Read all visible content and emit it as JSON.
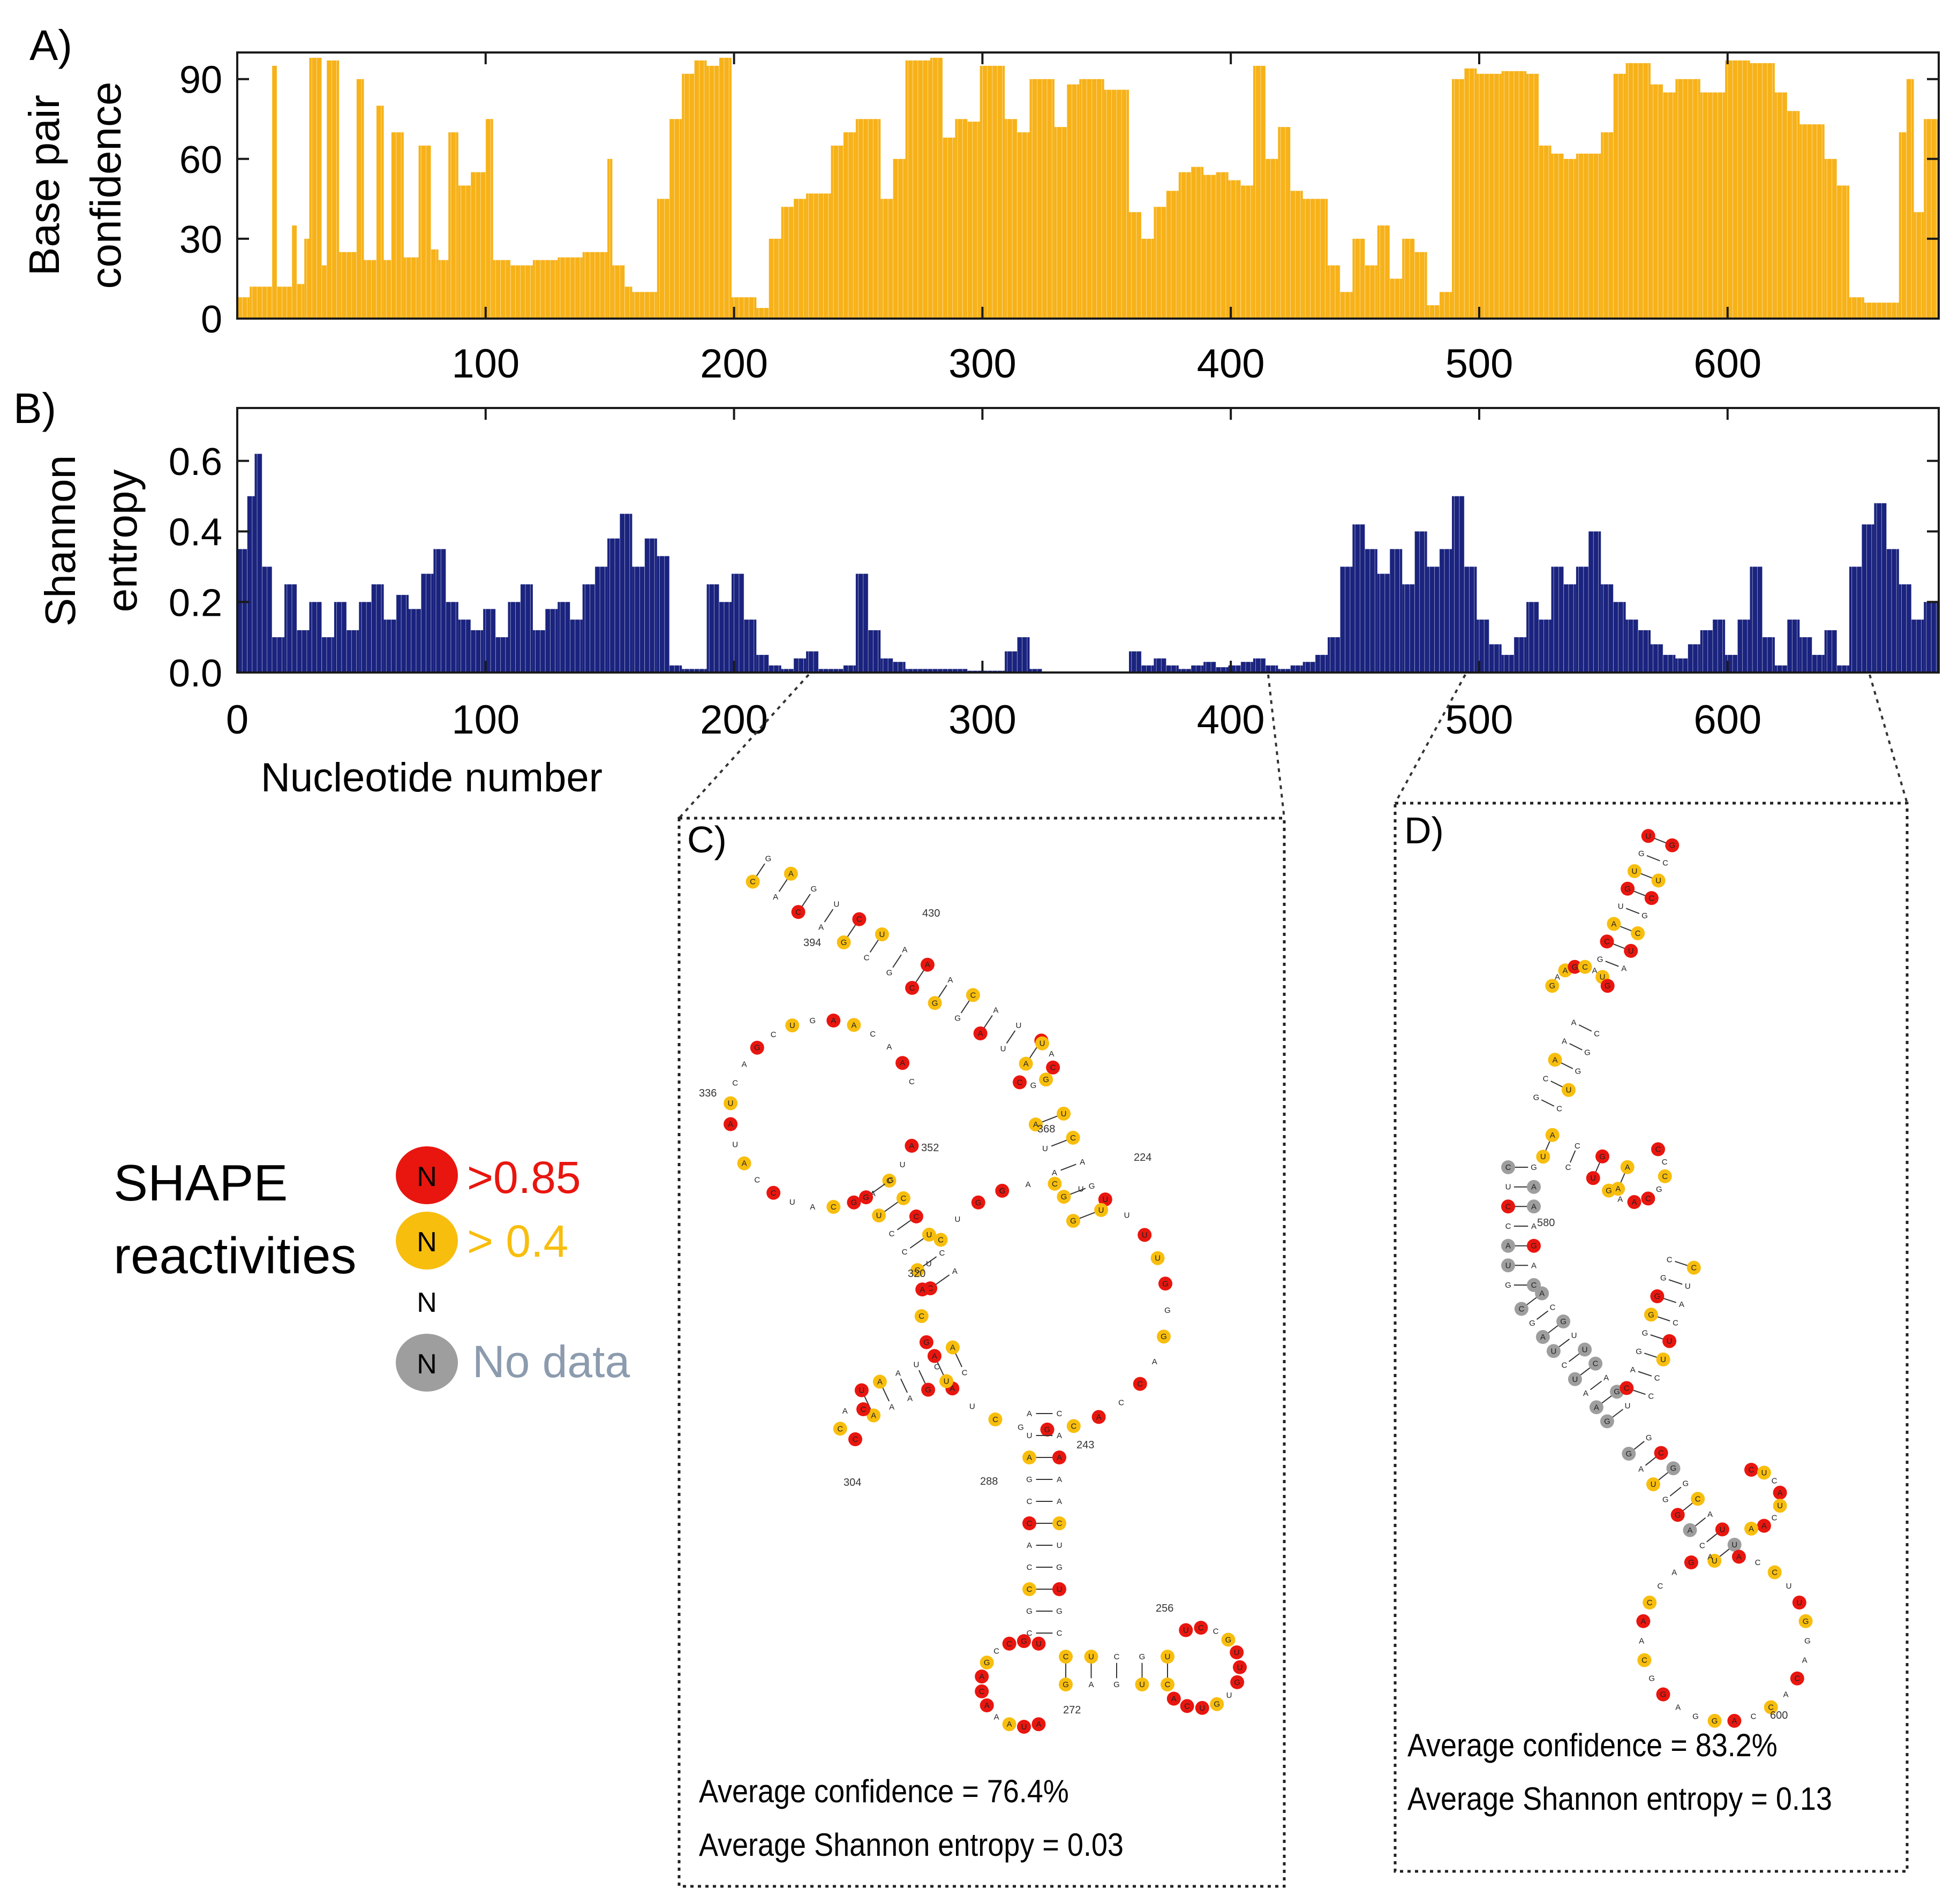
{
  "panels": {
    "a": {
      "label": "A)"
    },
    "b": {
      "label": "B)"
    },
    "c": {
      "label": "C)"
    },
    "d": {
      "label": "D)"
    }
  },
  "colors": {
    "confidence_bar": "#F7B219",
    "entropy_bar": "#1A237E",
    "shape_high": "#E8160F",
    "shape_mid": "#F8BE0E",
    "shape_nodata": "#9E9E9E",
    "nodata_text": "#8C9BAE"
  },
  "chart_data": [
    {
      "type": "bar",
      "panel": "A",
      "ylabel_lines": [
        "Base pair",
        "confidence"
      ],
      "xlim": [
        0,
        685
      ],
      "ylim": [
        0,
        100
      ],
      "yticks": [
        0,
        30,
        60,
        90
      ],
      "xticks": [
        100,
        200,
        300,
        400,
        500,
        600
      ],
      "segments": [
        [
          1,
          5,
          8
        ],
        [
          6,
          14,
          12
        ],
        [
          15,
          16,
          95
        ],
        [
          17,
          22,
          12
        ],
        [
          23,
          24,
          35
        ],
        [
          25,
          27,
          13
        ],
        [
          28,
          29,
          30
        ],
        [
          30,
          34,
          98
        ],
        [
          35,
          36,
          20
        ],
        [
          37,
          41,
          97
        ],
        [
          42,
          48,
          25
        ],
        [
          49,
          51,
          90
        ],
        [
          52,
          56,
          22
        ],
        [
          57,
          59,
          80
        ],
        [
          60,
          62,
          22
        ],
        [
          63,
          67,
          70
        ],
        [
          68,
          73,
          23
        ],
        [
          74,
          78,
          65
        ],
        [
          79,
          81,
          26
        ],
        [
          82,
          85,
          22
        ],
        [
          86,
          89,
          70
        ],
        [
          90,
          94,
          50
        ],
        [
          95,
          100,
          55
        ],
        [
          101,
          103,
          75
        ],
        [
          104,
          110,
          22
        ],
        [
          111,
          119,
          20
        ],
        [
          120,
          129,
          22
        ],
        [
          130,
          139,
          23
        ],
        [
          140,
          149,
          25
        ],
        [
          150,
          151,
          60
        ],
        [
          152,
          156,
          20
        ],
        [
          157,
          159,
          12
        ],
        [
          160,
          169,
          10
        ],
        [
          170,
          174,
          45
        ],
        [
          175,
          179,
          75
        ],
        [
          180,
          184,
          92
        ],
        [
          185,
          189,
          97
        ],
        [
          190,
          194,
          95
        ],
        [
          195,
          199,
          98
        ],
        [
          200,
          209,
          8
        ],
        [
          210,
          214,
          4
        ],
        [
          215,
          219,
          30
        ],
        [
          220,
          224,
          42
        ],
        [
          225,
          229,
          45
        ],
        [
          230,
          239,
          47
        ],
        [
          240,
          244,
          65
        ],
        [
          245,
          249,
          70
        ],
        [
          250,
          259,
          75
        ],
        [
          260,
          264,
          45
        ],
        [
          265,
          269,
          60
        ],
        [
          270,
          279,
          97
        ],
        [
          280,
          284,
          98
        ],
        [
          285,
          289,
          68
        ],
        [
          290,
          294,
          75
        ],
        [
          295,
          299,
          74
        ],
        [
          300,
          309,
          95
        ],
        [
          310,
          314,
          75
        ],
        [
          315,
          319,
          70
        ],
        [
          320,
          329,
          90
        ],
        [
          330,
          334,
          72
        ],
        [
          335,
          339,
          88
        ],
        [
          340,
          349,
          90
        ],
        [
          350,
          359,
          86
        ],
        [
          360,
          364,
          40
        ],
        [
          365,
          369,
          30
        ],
        [
          370,
          374,
          42
        ],
        [
          375,
          379,
          48
        ],
        [
          380,
          384,
          55
        ],
        [
          385,
          389,
          57
        ],
        [
          390,
          394,
          54
        ],
        [
          395,
          399,
          55
        ],
        [
          400,
          404,
          52
        ],
        [
          405,
          409,
          50
        ],
        [
          410,
          414,
          95
        ],
        [
          415,
          419,
          60
        ],
        [
          420,
          424,
          72
        ],
        [
          425,
          429,
          48
        ],
        [
          430,
          434,
          45
        ],
        [
          435,
          439,
          45
        ],
        [
          440,
          444,
          20
        ],
        [
          445,
          449,
          10
        ],
        [
          450,
          454,
          30
        ],
        [
          455,
          459,
          20
        ],
        [
          460,
          464,
          35
        ],
        [
          465,
          469,
          15
        ],
        [
          470,
          474,
          30
        ],
        [
          475,
          479,
          25
        ],
        [
          480,
          484,
          5
        ],
        [
          485,
          489,
          10
        ],
        [
          490,
          494,
          90
        ],
        [
          495,
          499,
          94
        ],
        [
          500,
          509,
          92
        ],
        [
          510,
          519,
          93
        ],
        [
          520,
          524,
          92
        ],
        [
          525,
          529,
          65
        ],
        [
          530,
          534,
          62
        ],
        [
          535,
          539,
          60
        ],
        [
          540,
          549,
          62
        ],
        [
          550,
          554,
          70
        ],
        [
          555,
          559,
          92
        ],
        [
          560,
          569,
          96
        ],
        [
          570,
          574,
          88
        ],
        [
          575,
          579,
          85
        ],
        [
          580,
          589,
          90
        ],
        [
          590,
          599,
          85
        ],
        [
          600,
          609,
          97
        ],
        [
          610,
          619,
          96
        ],
        [
          620,
          624,
          85
        ],
        [
          625,
          629,
          78
        ],
        [
          630,
          639,
          73
        ],
        [
          640,
          644,
          60
        ],
        [
          645,
          649,
          50
        ],
        [
          650,
          655,
          8
        ],
        [
          656,
          664,
          6
        ],
        [
          665,
          669,
          6
        ],
        [
          670,
          672,
          70
        ],
        [
          673,
          675,
          90
        ],
        [
          676,
          679,
          40
        ],
        [
          680,
          685,
          75
        ]
      ]
    },
    {
      "type": "bar",
      "panel": "B",
      "ylabel_lines": [
        "Shannon",
        "entropy"
      ],
      "xlabel": "Nucleotide number",
      "xlim": [
        0,
        685
      ],
      "ylim": [
        0,
        0.75
      ],
      "yticks": [
        0,
        0.2,
        0.4,
        0.6
      ],
      "xticks": [
        0,
        100,
        200,
        300,
        400,
        500,
        600
      ],
      "segments": [
        [
          1,
          4,
          0.35
        ],
        [
          5,
          7,
          0.5
        ],
        [
          8,
          10,
          0.62
        ],
        [
          11,
          14,
          0.3
        ],
        [
          15,
          19,
          0.1
        ],
        [
          20,
          24,
          0.25
        ],
        [
          25,
          29,
          0.12
        ],
        [
          30,
          34,
          0.2
        ],
        [
          35,
          39,
          0.1
        ],
        [
          40,
          44,
          0.2
        ],
        [
          45,
          49,
          0.12
        ],
        [
          50,
          54,
          0.2
        ],
        [
          55,
          59,
          0.25
        ],
        [
          60,
          64,
          0.15
        ],
        [
          65,
          69,
          0.22
        ],
        [
          70,
          74,
          0.18
        ],
        [
          75,
          79,
          0.28
        ],
        [
          80,
          84,
          0.35
        ],
        [
          85,
          89,
          0.2
        ],
        [
          90,
          94,
          0.15
        ],
        [
          95,
          99,
          0.12
        ],
        [
          100,
          104,
          0.18
        ],
        [
          105,
          109,
          0.1
        ],
        [
          110,
          114,
          0.2
        ],
        [
          115,
          119,
          0.25
        ],
        [
          120,
          124,
          0.12
        ],
        [
          125,
          129,
          0.18
        ],
        [
          130,
          134,
          0.2
        ],
        [
          135,
          139,
          0.15
        ],
        [
          140,
          144,
          0.25
        ],
        [
          145,
          149,
          0.3
        ],
        [
          150,
          154,
          0.38
        ],
        [
          155,
          159,
          0.45
        ],
        [
          160,
          164,
          0.3
        ],
        [
          165,
          169,
          0.38
        ],
        [
          170,
          174,
          0.33
        ],
        [
          175,
          179,
          0.02
        ],
        [
          180,
          184,
          0.01
        ],
        [
          185,
          189,
          0.01
        ],
        [
          190,
          194,
          0.25
        ],
        [
          195,
          199,
          0.2
        ],
        [
          200,
          204,
          0.28
        ],
        [
          205,
          209,
          0.15
        ],
        [
          210,
          214,
          0.05
        ],
        [
          215,
          219,
          0.02
        ],
        [
          220,
          224,
          0.01
        ],
        [
          225,
          229,
          0.04
        ],
        [
          230,
          234,
          0.06
        ],
        [
          235,
          239,
          0.01
        ],
        [
          240,
          244,
          0.01
        ],
        [
          245,
          249,
          0.02
        ],
        [
          250,
          254,
          0.28
        ],
        [
          255,
          259,
          0.12
        ],
        [
          260,
          264,
          0.04
        ],
        [
          265,
          269,
          0.03
        ],
        [
          270,
          274,
          0.01
        ],
        [
          275,
          279,
          0.01
        ],
        [
          280,
          294,
          0.01
        ],
        [
          295,
          309,
          0.005
        ],
        [
          310,
          314,
          0.06
        ],
        [
          315,
          319,
          0.1
        ],
        [
          320,
          324,
          0.01
        ],
        [
          325,
          359,
          0.003
        ],
        [
          360,
          364,
          0.06
        ],
        [
          365,
          369,
          0.02
        ],
        [
          370,
          374,
          0.04
        ],
        [
          375,
          379,
          0.02
        ],
        [
          380,
          384,
          0.01
        ],
        [
          385,
          389,
          0.02
        ],
        [
          390,
          394,
          0.03
        ],
        [
          395,
          399,
          0.015
        ],
        [
          400,
          404,
          0.02
        ],
        [
          405,
          409,
          0.03
        ],
        [
          410,
          414,
          0.04
        ],
        [
          415,
          419,
          0.02
        ],
        [
          420,
          424,
          0.01
        ],
        [
          425,
          429,
          0.02
        ],
        [
          430,
          434,
          0.03
        ],
        [
          435,
          439,
          0.05
        ],
        [
          440,
          444,
          0.1
        ],
        [
          445,
          449,
          0.3
        ],
        [
          450,
          454,
          0.42
        ],
        [
          455,
          459,
          0.35
        ],
        [
          460,
          464,
          0.28
        ],
        [
          465,
          469,
          0.35
        ],
        [
          470,
          474,
          0.25
        ],
        [
          475,
          479,
          0.4
        ],
        [
          480,
          484,
          0.3
        ],
        [
          485,
          489,
          0.35
        ],
        [
          490,
          494,
          0.5
        ],
        [
          495,
          499,
          0.3
        ],
        [
          500,
          504,
          0.15
        ],
        [
          505,
          509,
          0.08
        ],
        [
          510,
          514,
          0.05
        ],
        [
          515,
          519,
          0.1
        ],
        [
          520,
          524,
          0.2
        ],
        [
          525,
          529,
          0.15
        ],
        [
          530,
          534,
          0.3
        ],
        [
          535,
          539,
          0.25
        ],
        [
          540,
          544,
          0.3
        ],
        [
          545,
          549,
          0.4
        ],
        [
          550,
          554,
          0.25
        ],
        [
          555,
          559,
          0.2
        ],
        [
          560,
          564,
          0.15
        ],
        [
          565,
          569,
          0.12
        ],
        [
          570,
          574,
          0.08
        ],
        [
          575,
          579,
          0.05
        ],
        [
          580,
          584,
          0.04
        ],
        [
          585,
          589,
          0.08
        ],
        [
          590,
          594,
          0.12
        ],
        [
          595,
          599,
          0.15
        ],
        [
          600,
          604,
          0.05
        ],
        [
          605,
          609,
          0.15
        ],
        [
          610,
          614,
          0.3
        ],
        [
          615,
          619,
          0.1
        ],
        [
          620,
          624,
          0.02
        ],
        [
          625,
          629,
          0.15
        ],
        [
          630,
          634,
          0.1
        ],
        [
          635,
          639,
          0.05
        ],
        [
          640,
          644,
          0.12
        ],
        [
          645,
          649,
          0.02
        ],
        [
          650,
          654,
          0.3
        ],
        [
          655,
          659,
          0.42
        ],
        [
          660,
          664,
          0.48
        ],
        [
          665,
          669,
          0.35
        ],
        [
          670,
          674,
          0.25
        ],
        [
          675,
          679,
          0.15
        ],
        [
          680,
          685,
          0.2
        ]
      ]
    }
  ],
  "legend": {
    "title_lines": [
      "SHAPE",
      "reactivities"
    ],
    "glyph": "N",
    "items": [
      {
        "label": ">0.85",
        "kind": "high"
      },
      {
        "label": "> 0.4",
        "kind": "mid"
      },
      {
        "label": "",
        "kind": "plain"
      },
      {
        "label": "No data",
        "kind": "nodata"
      }
    ]
  },
  "box_c": {
    "zoom_range": [
      230,
      415
    ],
    "stats": [
      "Average confidence = 76.4%",
      "Average Shannon entropy = 0.03"
    ],
    "numbers": [
      "430",
      "394",
      "336",
      "352",
      "368",
      "224",
      "320",
      "304",
      "243",
      "288",
      "256",
      "272"
    ]
  },
  "box_d": {
    "zoom_range": [
      485,
      650
    ],
    "stats": [
      "Average confidence = 83.2%",
      "Average Shannon entropy = 0.13"
    ],
    "numbers": [
      "580",
      "600"
    ]
  }
}
